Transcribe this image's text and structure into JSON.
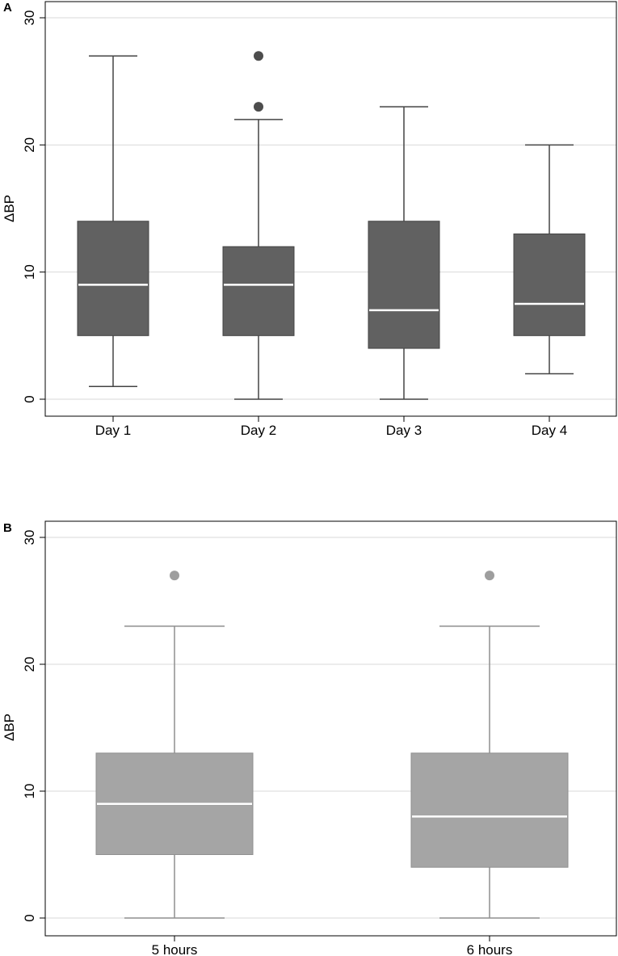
{
  "chart_data": [
    {
      "type": "box",
      "panel_label": "A",
      "ylabel": "ΔBP",
      "ylim": [
        0,
        30
      ],
      "yticks": [
        "0",
        "10",
        "20",
        "30"
      ],
      "grid": true,
      "box_color": "#616161",
      "whisker_color": "#444444",
      "median_color": "#ffffff",
      "outlier_color": "#4d4d4d",
      "categories": [
        "Day 1",
        "Day 2",
        "Day 3",
        "Day 4"
      ],
      "boxes": [
        {
          "min": 1,
          "q1": 5,
          "median": 9,
          "q3": 14,
          "max": 27,
          "outliers": []
        },
        {
          "min": 0,
          "q1": 5,
          "median": 9,
          "q3": 12,
          "max": 22,
          "outliers": [
            23,
            27
          ]
        },
        {
          "min": 0,
          "q1": 4,
          "median": 7,
          "q3": 14,
          "max": 23,
          "outliers": []
        },
        {
          "min": 2,
          "q1": 5,
          "median": 7.5,
          "q3": 13,
          "max": 20,
          "outliers": []
        }
      ]
    },
    {
      "type": "box",
      "panel_label": "B",
      "ylabel": "ΔBP",
      "ylim": [
        0,
        30
      ],
      "yticks": [
        "0",
        "10",
        "20",
        "30"
      ],
      "grid": true,
      "box_color": "#a5a5a5",
      "whisker_color": "#8f8f8f",
      "median_color": "#ffffff",
      "outlier_color": "#9e9e9e",
      "categories": [
        "5 hours",
        "6 hours"
      ],
      "boxes": [
        {
          "min": 0,
          "q1": 5,
          "median": 9,
          "q3": 13,
          "max": 23,
          "outliers": [
            27
          ]
        },
        {
          "min": 0,
          "q1": 4,
          "median": 8,
          "q3": 13,
          "max": 23,
          "outliers": [
            27
          ]
        }
      ]
    }
  ]
}
